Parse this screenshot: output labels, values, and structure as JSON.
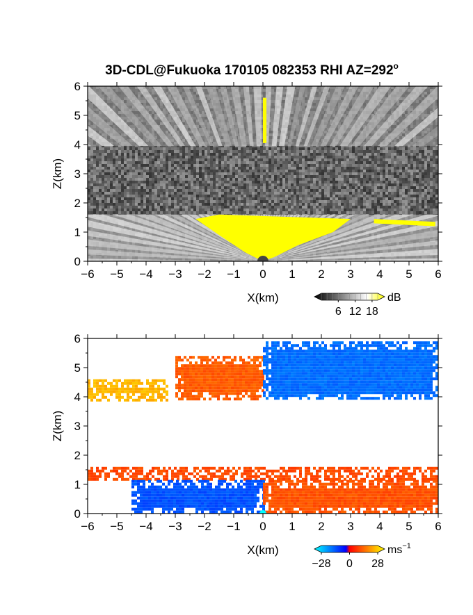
{
  "figure_title": "3D-CDL@Fukuoka 170105 082353 RHI AZ=292",
  "title_superscript": "o",
  "chart_data": [
    {
      "type": "heatmap",
      "quantity": "backscatter intensity",
      "xlabel": "X(km)",
      "ylabel": "Z(km)",
      "xlim": [
        -6,
        6
      ],
      "ylim": [
        0,
        6
      ],
      "xticks": [
        -6,
        -5,
        -4,
        -3,
        -2,
        -1,
        0,
        1,
        2,
        3,
        4,
        5,
        6
      ],
      "yticks": [
        0,
        1,
        2,
        3,
        4,
        5,
        6
      ],
      "colorbar": {
        "unit": "dB",
        "tick_labels": [
          "6",
          "12",
          "18"
        ],
        "range": [
          0,
          20
        ],
        "colors": [
          "#000000",
          "#ffffff",
          "#ffff00"
        ]
      },
      "layers": [
        {
          "z_range": [
            0,
            1.6
          ],
          "description": "boundary-layer echo with radial streaks",
          "level_db": 14
        },
        {
          "z_range": [
            1.6,
            3.95
          ],
          "description": "noise, no signal",
          "level_db": 6
        },
        {
          "z_range": [
            3.95,
            6.0
          ],
          "description": "upper-layer echo with radial streaks",
          "level_db": 13
        }
      ],
      "saturated_regions_db": 18
    },
    {
      "type": "heatmap",
      "quantity": "Doppler velocity",
      "xlabel": "X(km)",
      "ylabel": "Z(km)",
      "xlim": [
        -6,
        6
      ],
      "ylim": [
        0,
        6
      ],
      "xticks": [
        -6,
        -5,
        -4,
        -3,
        -2,
        -1,
        0,
        1,
        2,
        3,
        4,
        5,
        6
      ],
      "yticks": [
        0,
        1,
        2,
        3,
        4,
        5,
        6
      ],
      "colorbar": {
        "unit": "ms",
        "unit_exponent": "−1",
        "tick_labels": [
          "−28",
          "0",
          "28"
        ],
        "range": [
          -28,
          28
        ],
        "colors": [
          "#00ffff",
          "#0000ff",
          "#ff0000",
          "#ffff00"
        ]
      },
      "regions": [
        {
          "x_range": [
            -6,
            -3.3
          ],
          "z_range": [
            3.9,
            4.6
          ],
          "velocity_ms": 20
        },
        {
          "x_range": [
            -3.0,
            0
          ],
          "z_range": [
            3.95,
            5.4
          ],
          "velocity_ms": 10
        },
        {
          "x_range": [
            0,
            6
          ],
          "z_range": [
            3.9,
            5.9
          ],
          "velocity_ms": -12
        },
        {
          "x_range": [
            -6,
            6
          ],
          "z_range": [
            1.2,
            1.6
          ],
          "velocity_ms": 8
        },
        {
          "x_range": [
            -4.5,
            0
          ],
          "z_range": [
            0,
            1.15
          ],
          "velocity_ms": -9
        },
        {
          "x_range": [
            0,
            6
          ],
          "z_range": [
            0,
            1.15
          ],
          "velocity_ms": 9
        }
      ]
    }
  ]
}
